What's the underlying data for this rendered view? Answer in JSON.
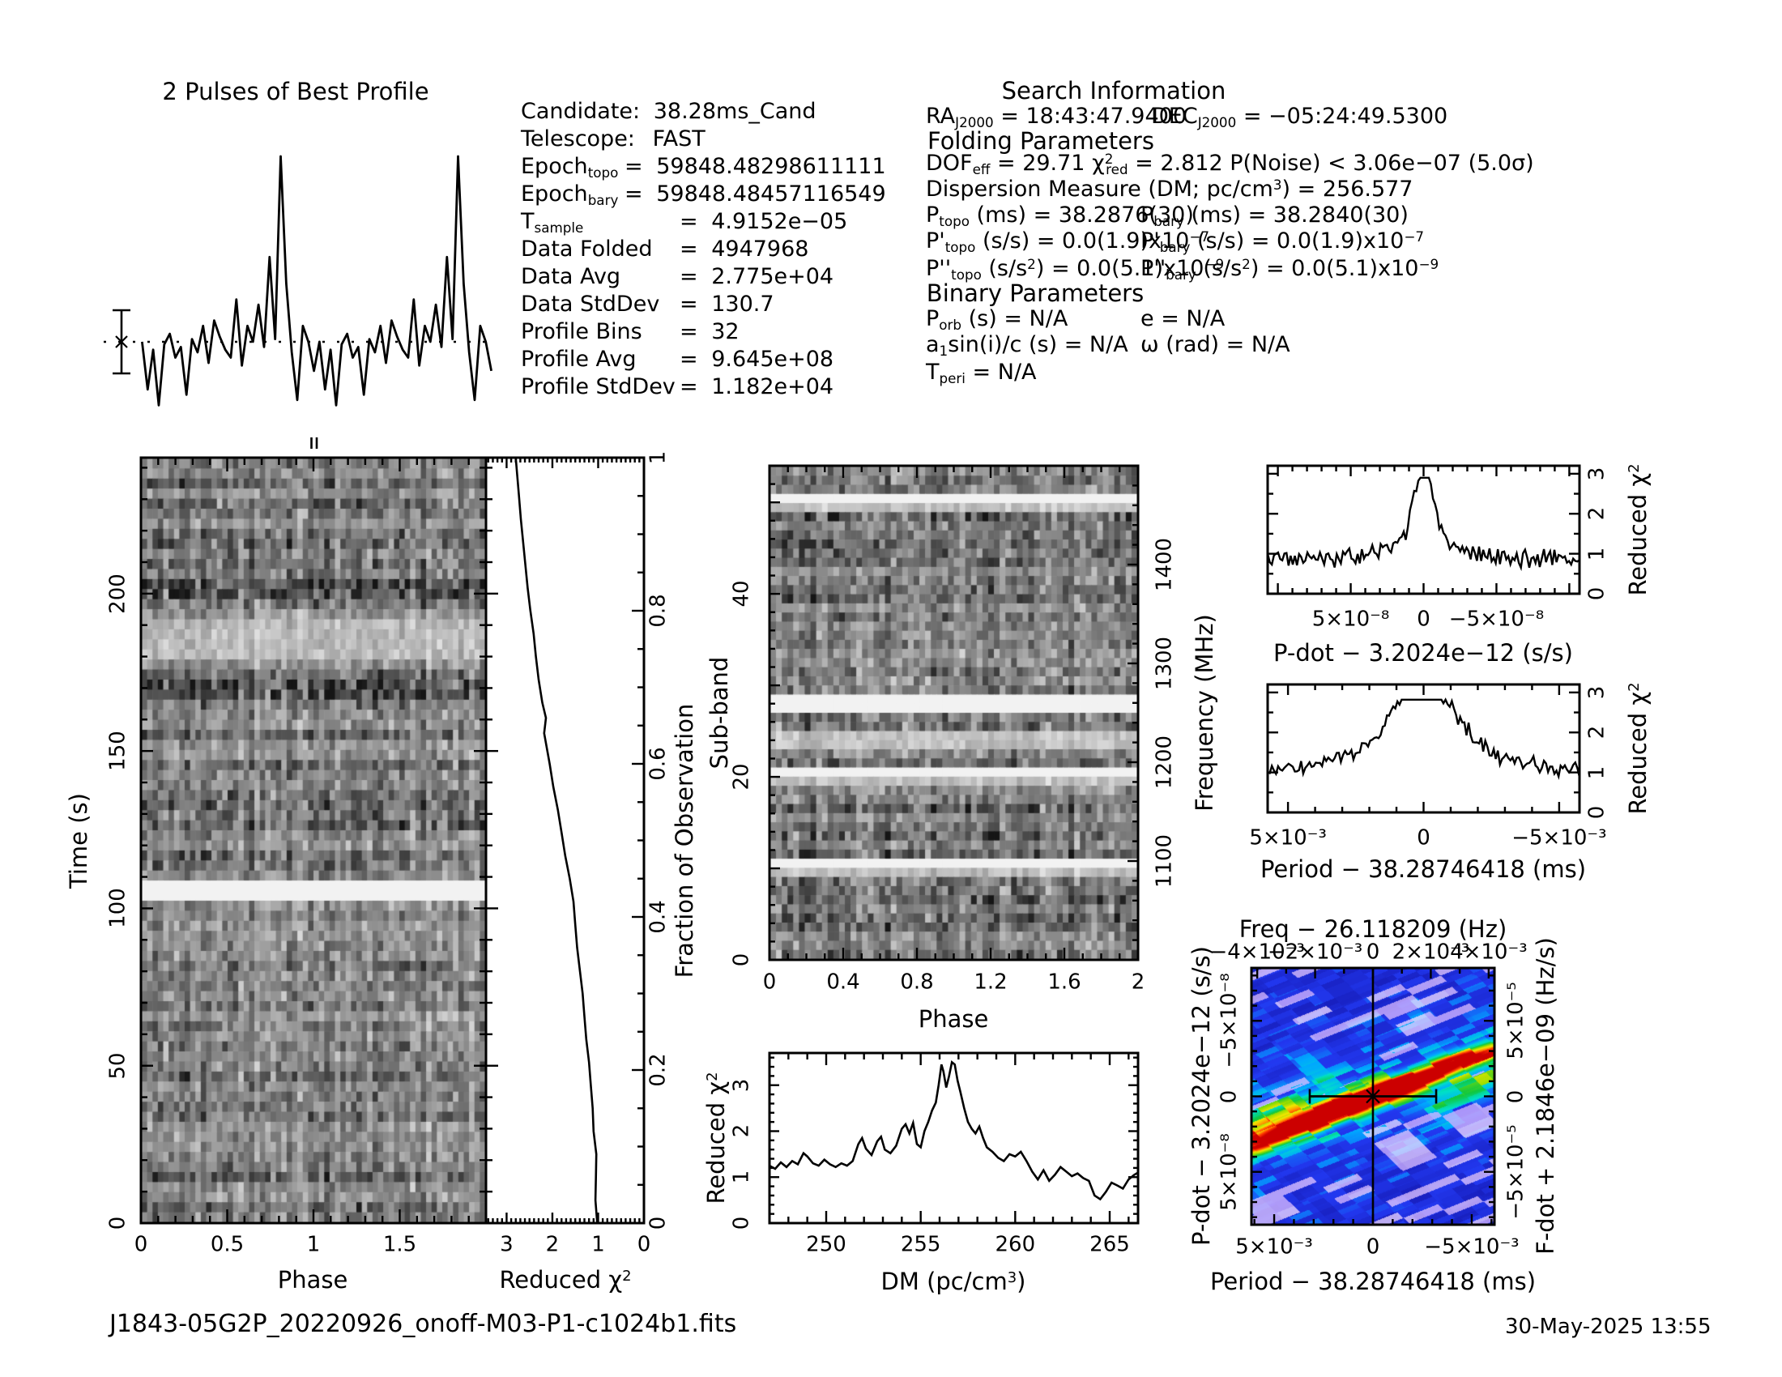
{
  "page": {
    "filename": "J1843-05G2P_20220926_onoff-M03-P1-c1024b1.fits",
    "datetime": "30-May-2025 13:55",
    "background": "#ffffff",
    "foreground": "#000000"
  },
  "header": {
    "profile_title": "2 Pulses of Best Profile",
    "search_info_title": "Search Information",
    "folding_title": "Folding Parameters",
    "binary_title": "Binary Parameters"
  },
  "candidate_info": {
    "lines": [
      {
        "kind": "plain",
        "label": [
          {
            "t": "Candidate:"
          }
        ],
        "eq": "",
        "value": "38.28ms_Cand"
      },
      {
        "kind": "plain",
        "label": [
          {
            "t": "Telescope:"
          }
        ],
        "eq": "",
        "value": "FAST"
      },
      {
        "kind": "epoch",
        "label": [
          {
            "t": "Epoch"
          },
          {
            "sub": "topo"
          }
        ],
        "eq": "=",
        "value": "59848.48298611111"
      },
      {
        "kind": "epoch",
        "label": [
          {
            "t": "Epoch"
          },
          {
            "sub": "bary"
          }
        ],
        "eq": "=",
        "value": "59848.48457116549"
      },
      {
        "kind": "eq",
        "label": [
          {
            "t": "T"
          },
          {
            "sub": "sample"
          }
        ],
        "eq": "=",
        "value": "4.9152e−05"
      },
      {
        "kind": "eq",
        "label": [
          {
            "t": "Data Folded"
          }
        ],
        "eq": "=",
        "value": "4947968"
      },
      {
        "kind": "eq",
        "label": [
          {
            "t": "Data Avg"
          }
        ],
        "eq": "=",
        "value": "2.775e+04"
      },
      {
        "kind": "eq",
        "label": [
          {
            "t": "Data StdDev"
          }
        ],
        "eq": "=",
        "value": "130.7"
      },
      {
        "kind": "eq",
        "label": [
          {
            "t": "Profile Bins"
          }
        ],
        "eq": "=",
        "value": "32"
      },
      {
        "kind": "eq",
        "label": [
          {
            "t": "Profile Avg"
          }
        ],
        "eq": "=",
        "value": "9.645e+08"
      },
      {
        "kind": "eq",
        "label": [
          {
            "t": "Profile StdDev"
          }
        ],
        "eq": "=",
        "value": "1.182e+04"
      }
    ]
  },
  "search_info": {
    "ra": [
      {
        "t": "RA"
      },
      {
        "sub": "J2000"
      },
      {
        "t": " = 18:43:47.9400"
      }
    ],
    "dec": [
      {
        "t": "DEC"
      },
      {
        "sub": "J2000"
      },
      {
        "t": " = −05:24:49.5300"
      }
    ],
    "dof": [
      {
        "t": "DOF"
      },
      {
        "sub": "eff"
      },
      {
        "t": " = 29.71   "
      },
      {
        "t": "χ"
      },
      {
        "sup": "2"
      },
      {
        "subt": "red"
      },
      {
        "t": " = 2.812   P(Noise) < 3.06e−07   (5.0σ)"
      }
    ],
    "dm": [
      {
        "t": "Dispersion Measure (DM; pc/cm"
      },
      {
        "sup": "3"
      },
      {
        "t": ") = 256.577"
      }
    ],
    "ptopo": [
      {
        "t": "P"
      },
      {
        "sub": "topo"
      },
      {
        "t": " (ms) =  38.2876(30)"
      }
    ],
    "pbary": [
      {
        "t": "P"
      },
      {
        "sub": "bary"
      },
      {
        "t": " (ms) =  38.2840(30)"
      }
    ],
    "pdtopo": [
      {
        "t": "P'"
      },
      {
        "sub": "topo"
      },
      {
        "t": " (s/s) = 0.0(1.9)x10"
      },
      {
        "sup": "−7"
      }
    ],
    "pdbary": [
      {
        "t": "P'"
      },
      {
        "sub": "bary"
      },
      {
        "t": " (s/s) = 0.0(1.9)x10"
      },
      {
        "sup": "−7"
      }
    ],
    "pddtopo": [
      {
        "t": "P''"
      },
      {
        "sub": "topo"
      },
      {
        "t": " (s/s"
      },
      {
        "sup": "2"
      },
      {
        "t": ") = 0.0(5.1)x10"
      },
      {
        "sup": "−9"
      }
    ],
    "pddbary": [
      {
        "t": "P''"
      },
      {
        "sub": "bary"
      },
      {
        "t": " (s/s"
      },
      {
        "sup": "2"
      },
      {
        "t": ") = 0.0(5.1)x10"
      },
      {
        "sup": "−9"
      }
    ],
    "porb": [
      {
        "t": "P"
      },
      {
        "sub": "orb"
      },
      {
        "t": " (s) = N/A"
      }
    ],
    "ecc": [
      {
        "t": "e = N/A"
      }
    ],
    "asini": [
      {
        "t": "a"
      },
      {
        "sub": "1"
      },
      {
        "t": "sin(i)/c (s) = N/A"
      }
    ],
    "omega": [
      {
        "t": "ω (rad) = N/A"
      }
    ],
    "tperi": [
      {
        "t": "T"
      },
      {
        "sub": "peri"
      },
      {
        "t": " = N/A"
      }
    ]
  },
  "chart_data": [
    {
      "id": "pulse_profile",
      "type": "line",
      "title": "2 Pulses of Best Profile",
      "n_pulses": 2,
      "bins_per_period": 32,
      "values": [
        0.3,
        0.12,
        0.27,
        0.06,
        0.29,
        0.33,
        0.24,
        0.28,
        0.1,
        0.31,
        0.26,
        0.36,
        0.22,
        0.38,
        0.32,
        0.27,
        0.24,
        0.46,
        0.21,
        0.36,
        0.3,
        0.44,
        0.28,
        0.62,
        0.31,
        1.0,
        0.52,
        0.26,
        0.08,
        0.36,
        0.3,
        0.19
      ],
      "mean_level": 0.3,
      "error_bar_half": 0.12,
      "peak_phase_marker": 1.0
    },
    {
      "id": "time_phase",
      "type": "heatmap",
      "xlabel": "Phase",
      "ylabel": "Time (s)",
      "x_range": [
        0,
        2
      ],
      "y_range_s": [
        0,
        243.2
      ],
      "rows": 76,
      "cols": 64,
      "seed": 42,
      "xtick_labels": [
        "0",
        "0.5",
        "1",
        "1.5"
      ],
      "xtick_values": [
        0,
        0.5,
        1,
        1.5
      ],
      "ytick_labels": [
        "0",
        "50",
        "100",
        "150",
        "200"
      ],
      "ytick_values": [
        0,
        50,
        100,
        150,
        200
      ],
      "white_time_bands_s": [
        [
          102,
          110
        ]
      ],
      "dark_time_bands_s": [
        [
          166,
          173
        ],
        [
          197,
          206
        ]
      ],
      "light_time_bands_s": [
        [
          180,
          193
        ]
      ]
    },
    {
      "id": "chi2_vs_fraction",
      "type": "line",
      "xlabel": "Reduced χ²",
      "ylabel_right": "Fraction of Observation",
      "x_range": [
        3.45,
        0
      ],
      "y_range": [
        0,
        1
      ],
      "xtick_labels": [
        "3",
        "2",
        "1",
        "0"
      ],
      "xtick_values": [
        3,
        2,
        1,
        0
      ],
      "ytick_labels": [
        "0",
        "0.2",
        "0.4",
        "0.6",
        "0.8",
        "1"
      ],
      "ytick_values": [
        0,
        0.2,
        0.4,
        0.6,
        0.8,
        1
      ],
      "points": [
        [
          0,
          1.02
        ],
        [
          0.03,
          1.06
        ],
        [
          0.06,
          1.05
        ],
        [
          0.09,
          1.04
        ],
        [
          0.12,
          1.1
        ],
        [
          0.15,
          1.12
        ],
        [
          0.18,
          1.16
        ],
        [
          0.21,
          1.2
        ],
        [
          0.24,
          1.26
        ],
        [
          0.27,
          1.3
        ],
        [
          0.3,
          1.34
        ],
        [
          0.33,
          1.4
        ],
        [
          0.36,
          1.46
        ],
        [
          0.39,
          1.5
        ],
        [
          0.42,
          1.54
        ],
        [
          0.45,
          1.62
        ],
        [
          0.48,
          1.72
        ],
        [
          0.51,
          1.8
        ],
        [
          0.54,
          1.88
        ],
        [
          0.57,
          1.98
        ],
        [
          0.6,
          2.06
        ],
        [
          0.62,
          2.12
        ],
        [
          0.64,
          2.18
        ],
        [
          0.66,
          2.14
        ],
        [
          0.68,
          2.22
        ],
        [
          0.71,
          2.3
        ],
        [
          0.74,
          2.36
        ],
        [
          0.77,
          2.41
        ],
        [
          0.8,
          2.48
        ],
        [
          0.83,
          2.54
        ],
        [
          0.86,
          2.59
        ],
        [
          0.89,
          2.64
        ],
        [
          0.92,
          2.69
        ],
        [
          0.95,
          2.73
        ],
        [
          1.0,
          2.8
        ]
      ]
    },
    {
      "id": "subband_phase",
      "type": "heatmap",
      "xlabel": "Phase",
      "ylabel_left": "Sub-band",
      "ylabel_right": "Frequency (MHz)",
      "x_range": [
        0,
        2
      ],
      "y_range": [
        0,
        54
      ],
      "freq_range_mhz": [
        1000,
        1500
      ],
      "rows": 54,
      "cols": 64,
      "seed": 77,
      "xtick_labels": [
        "0",
        "0.4",
        "0.8",
        "1.2",
        "1.6",
        "2"
      ],
      "xtick_values": [
        0,
        0.4,
        0.8,
        1.2,
        1.6,
        2
      ],
      "ytick_labels": [
        "0",
        "20",
        "40"
      ],
      "ytick_values": [
        0,
        20,
        40
      ],
      "freq_tick_labels": [
        "1100",
        "1200",
        "1300",
        "1400"
      ],
      "freq_tick_values": [
        1100,
        1200,
        1300,
        1400
      ],
      "white_subbands": [
        50,
        28,
        27,
        20,
        10
      ],
      "light_subbands": [
        49,
        24,
        23,
        19,
        9
      ]
    },
    {
      "id": "dm_curve",
      "type": "line",
      "xlabel": "DM (pc/cm³)",
      "ylabel": "Reduced χ²",
      "best_dm": 256.577,
      "x_range": [
        247,
        266.5
      ],
      "y_range": [
        0,
        3.7
      ],
      "xtick_labels": [
        "250",
        "255",
        "260",
        "265"
      ],
      "xtick_values": [
        250,
        255,
        260,
        265
      ],
      "ytick_labels": [
        "0",
        "1",
        "2",
        "3"
      ],
      "ytick_values": [
        0,
        1,
        2,
        3
      ],
      "points": [
        [
          247.0,
          1.25
        ],
        [
          247.3,
          1.18
        ],
        [
          247.6,
          1.32
        ],
        [
          247.9,
          1.22
        ],
        [
          248.2,
          1.35
        ],
        [
          248.5,
          1.28
        ],
        [
          248.8,
          1.52
        ],
        [
          249.0,
          1.45
        ],
        [
          249.3,
          1.3
        ],
        [
          249.6,
          1.25
        ],
        [
          249.9,
          1.38
        ],
        [
          250.2,
          1.28
        ],
        [
          250.5,
          1.22
        ],
        [
          250.8,
          1.3
        ],
        [
          251.1,
          1.25
        ],
        [
          251.4,
          1.35
        ],
        [
          251.7,
          1.72
        ],
        [
          251.9,
          1.85
        ],
        [
          252.1,
          1.62
        ],
        [
          252.4,
          1.48
        ],
        [
          252.7,
          1.78
        ],
        [
          252.9,
          1.88
        ],
        [
          253.1,
          1.6
        ],
        [
          253.4,
          1.52
        ],
        [
          253.7,
          1.68
        ],
        [
          254.0,
          2.05
        ],
        [
          254.2,
          2.15
        ],
        [
          254.4,
          1.95
        ],
        [
          254.6,
          2.18
        ],
        [
          254.8,
          1.72
        ],
        [
          255.0,
          1.65
        ],
        [
          255.2,
          2.0
        ],
        [
          255.4,
          2.2
        ],
        [
          255.6,
          2.45
        ],
        [
          255.8,
          2.62
        ],
        [
          255.95,
          3.0
        ],
        [
          256.1,
          3.45
        ],
        [
          256.2,
          3.3
        ],
        [
          256.35,
          2.95
        ],
        [
          256.5,
          3.2
        ],
        [
          256.65,
          3.5
        ],
        [
          256.8,
          3.45
        ],
        [
          256.95,
          3.1
        ],
        [
          257.1,
          2.85
        ],
        [
          257.3,
          2.5
        ],
        [
          257.5,
          2.2
        ],
        [
          257.7,
          2.05
        ],
        [
          257.9,
          1.95
        ],
        [
          258.1,
          2.1
        ],
        [
          258.3,
          1.85
        ],
        [
          258.5,
          1.65
        ],
        [
          258.8,
          1.55
        ],
        [
          259.1,
          1.42
        ],
        [
          259.4,
          1.35
        ],
        [
          259.7,
          1.5
        ],
        [
          260.0,
          1.45
        ],
        [
          260.3,
          1.55
        ],
        [
          260.6,
          1.35
        ],
        [
          260.9,
          1.12
        ],
        [
          261.2,
          0.95
        ],
        [
          261.5,
          1.15
        ],
        [
          261.8,
          0.92
        ],
        [
          262.1,
          1.05
        ],
        [
          262.4,
          1.22
        ],
        [
          262.7,
          1.12
        ],
        [
          263.0,
          1.02
        ],
        [
          263.3,
          1.08
        ],
        [
          263.6,
          0.98
        ],
        [
          263.9,
          0.92
        ],
        [
          264.2,
          0.6
        ],
        [
          264.5,
          0.52
        ],
        [
          264.8,
          0.68
        ],
        [
          265.1,
          0.88
        ],
        [
          265.4,
          0.82
        ],
        [
          265.7,
          0.75
        ],
        [
          266.0,
          0.95
        ],
        [
          266.3,
          1.05
        ],
        [
          266.5,
          1.1
        ]
      ]
    },
    {
      "id": "pdot_curve",
      "type": "line",
      "xlabel": "P-dot − 3.2024e−12 (s/s)",
      "ylabel_right": "Reduced χ²",
      "x_range": [
        1.07e-07,
        -1.07e-07
      ],
      "y_range": [
        0,
        3.2
      ],
      "xtick_labels": [
        "5×10⁻⁸",
        "0",
        "−5×10⁻⁸"
      ],
      "xtick_values": [
        5e-08,
        0,
        -5e-08
      ],
      "ytick_labels": [
        "0",
        "1",
        "2",
        "3"
      ],
      "ytick_values": [
        0,
        1,
        2,
        3
      ],
      "baseline": 0.88,
      "noise_amp": 0.2,
      "peak_height": 1.95,
      "peak_width": 6e-09,
      "broad_height": 0.55,
      "broad_width": 2.2e-08,
      "cap": 2.9,
      "seed": 5,
      "n_points": 150
    },
    {
      "id": "period_curve",
      "type": "line",
      "xlabel": "Period − 38.28746418 (ms)",
      "ylabel_right": "Reduced χ²",
      "x_range": [
        0.00575,
        -0.00575
      ],
      "y_range": [
        0,
        3.2
      ],
      "xtick_labels": [
        "5×10⁻³",
        "0",
        "−5×10⁻³"
      ],
      "xtick_values": [
        0.005,
        0,
        -0.005
      ],
      "ytick_labels": [
        "0",
        "1",
        "2",
        "3"
      ],
      "ytick_values": [
        0,
        1,
        2,
        3
      ],
      "baseline": 0.95,
      "noise_amp": 0.17,
      "peak_height": 1.8,
      "peak_width": 0.00115,
      "broad_height": 0.5,
      "broad_width": 0.0032,
      "cap": 2.82,
      "seed": 9,
      "n_points": 150
    },
    {
      "id": "pdot_period_map",
      "type": "heatmap",
      "title": "Freq − 26.118209 (Hz)",
      "xlabel_bottom": "Period − 38.28746418 (ms)",
      "ylabel_left": "P-dot − 3.2024e−12 (s/s)",
      "ylabel_right": "F-dot + 2.1846e−09 (Hz/s)",
      "top_tick_labels": [
        "−4×10⁻³",
        "−2×10⁻³",
        "0",
        "2×10⁻³",
        "4×10⁻³"
      ],
      "top_tick_values": [
        -0.004,
        -0.002,
        0,
        0.002,
        0.004
      ],
      "bottom_tick_labels": [
        "5×10⁻³",
        "0",
        "−5×10⁻³"
      ],
      "bottom_tick_values": [
        0.005,
        0,
        -0.005
      ],
      "left_tick_labels": [
        "−5×10⁻⁸",
        "0",
        "5×10⁻⁸"
      ],
      "left_tick_values": [
        -5e-08,
        0,
        5e-08
      ],
      "right_tick_labels": [
        "5×10⁻⁵",
        "0",
        "−5×10⁻⁵"
      ],
      "right_tick_values": [
        5e-05,
        0,
        -5e-05
      ],
      "x_range_ms": [
        0.00615,
        -0.00615
      ],
      "freq_range_hz": [
        -0.0042,
        0.0042
      ],
      "y_range_pdot": [
        -8.5e-08,
        8.5e-08
      ],
      "colormap": "blue-cyan-green-yellow-red",
      "crosshair": true,
      "error_bar_halfwidth_ms": 0.0032,
      "seed": 7
    }
  ]
}
